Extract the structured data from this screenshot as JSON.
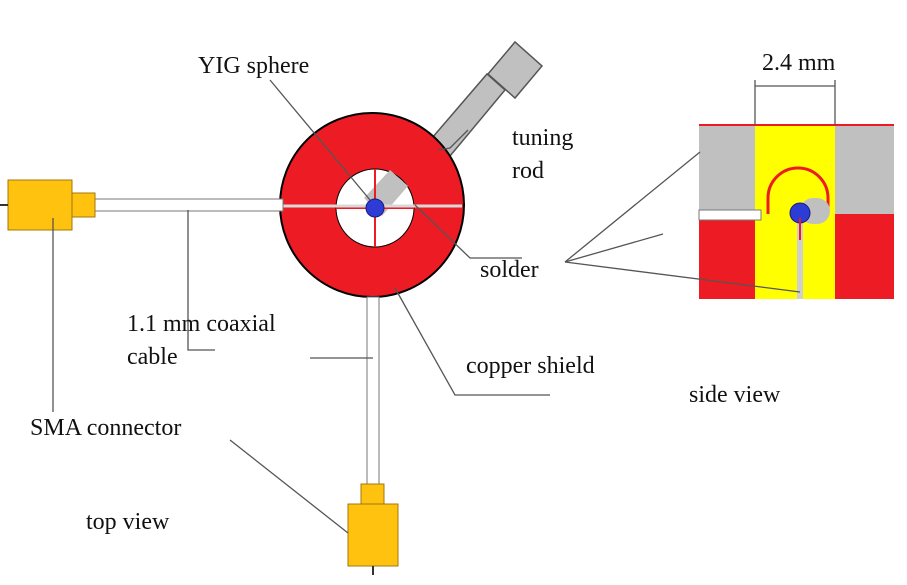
{
  "labels": {
    "yig_sphere": "YIG sphere",
    "tuning_rod_line1": "tuning",
    "tuning_rod_line2": "rod",
    "solder": "solder",
    "coax_line1": "1.1 mm coaxial",
    "coax_line2": "cable",
    "copper_shield": "copper shield",
    "sma_connector": "SMA connector",
    "top_view": "top view",
    "side_view": "side view",
    "dimension": "2.4 mm"
  },
  "colors": {
    "copper": "#ed1c24",
    "connector": "#ffc20e",
    "connector_stroke": "#a0780a",
    "slot_yellow": "#ffff00",
    "rod_gray": "#c0c0c0",
    "sphere_blue": "#2c3cd4",
    "line": "#555555"
  }
}
